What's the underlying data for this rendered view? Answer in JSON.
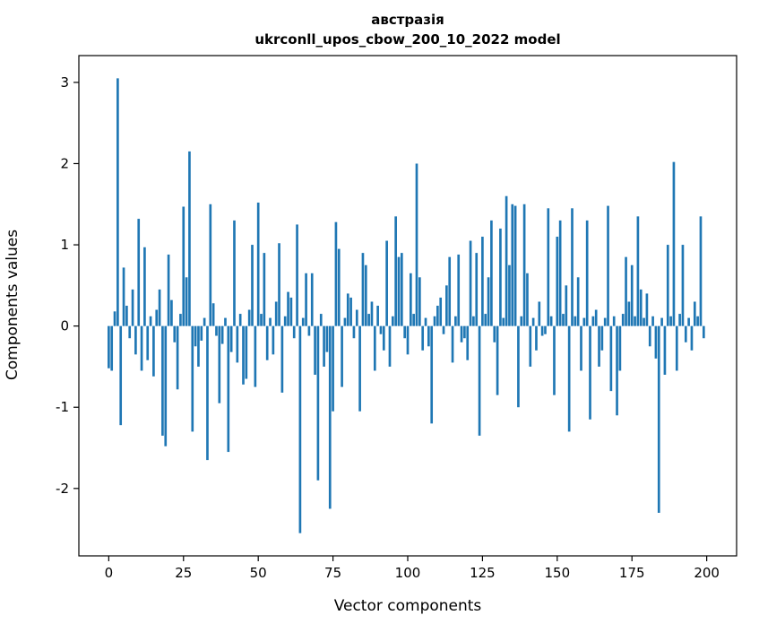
{
  "figure": {
    "title": "австразія",
    "subtitle": "ukrconll_upos_cbow_200_10_2022 model",
    "xlabel": "Vector components",
    "ylabel": "Components values"
  },
  "chart_data": {
    "type": "bar",
    "title": "австразія",
    "subtitle": "ukrconll_upos_cbow_200_10_2022 model",
    "xlabel": "Vector components",
    "ylabel": "Components values",
    "bar_color": "#1f77b4",
    "grid": false,
    "xlim": [
      -10,
      210
    ],
    "ylim": [
      -2.83,
      3.33
    ],
    "xticks": [
      0,
      25,
      50,
      75,
      100,
      125,
      150,
      175,
      200
    ],
    "yticks": [
      -2,
      -1,
      0,
      1,
      2,
      3
    ],
    "x_start": 0,
    "values": [
      -0.52,
      -0.55,
      0.18,
      3.05,
      -1.22,
      0.72,
      0.25,
      -0.15,
      0.45,
      -0.35,
      1.32,
      -0.55,
      0.97,
      -0.42,
      0.12,
      -0.62,
      0.2,
      0.45,
      -1.35,
      -1.48,
      0.88,
      0.32,
      -0.2,
      -0.78,
      0.15,
      1.47,
      0.6,
      2.15,
      -1.3,
      -0.25,
      -0.5,
      -0.18,
      0.1,
      -1.65,
      1.5,
      0.28,
      -0.12,
      -0.95,
      -0.22,
      0.1,
      -1.55,
      -0.32,
      1.3,
      -0.45,
      0.15,
      -0.72,
      -0.65,
      0.2,
      1.0,
      -0.75,
      1.52,
      0.15,
      0.9,
      -0.42,
      0.1,
      -0.35,
      0.3,
      1.02,
      -0.82,
      0.12,
      0.42,
      0.35,
      -0.15,
      1.25,
      -2.55,
      0.1,
      0.65,
      -0.12,
      0.65,
      -0.6,
      -1.9,
      0.15,
      -0.5,
      -0.32,
      -2.25,
      -1.05,
      1.28,
      0.95,
      -0.75,
      0.1,
      0.4,
      0.35,
      -0.15,
      0.2,
      -1.05,
      0.9,
      0.75,
      0.15,
      0.3,
      -0.55,
      0.25,
      -0.1,
      -0.3,
      1.05,
      -0.5,
      0.12,
      1.35,
      0.85,
      0.9,
      -0.15,
      -0.35,
      0.65,
      0.15,
      2.0,
      0.6,
      -0.3,
      0.1,
      -0.25,
      -1.2,
      0.12,
      0.25,
      0.35,
      -0.1,
      0.5,
      0.85,
      -0.45,
      0.12,
      0.88,
      -0.2,
      -0.15,
      -0.42,
      1.05,
      0.12,
      0.9,
      -1.35,
      1.1,
      0.15,
      0.6,
      1.3,
      -0.2,
      -0.85,
      1.2,
      0.1,
      1.6,
      0.75,
      1.5,
      1.48,
      -1.0,
      0.12,
      1.5,
      0.65,
      -0.5,
      0.1,
      -0.3,
      0.3,
      -0.12,
      -0.1,
      1.45,
      0.12,
      -0.85,
      1.1,
      1.3,
      0.15,
      0.5,
      -1.3,
      1.45,
      0.12,
      0.6,
      -0.55,
      0.1,
      1.3,
      -1.15,
      0.12,
      0.2,
      -0.5,
      -0.3,
      0.1,
      1.48,
      -0.8,
      0.12,
      -1.1,
      -0.55,
      0.15,
      0.85,
      0.3,
      0.75,
      0.12,
      1.35,
      0.45,
      0.1,
      0.4,
      -0.25,
      0.12,
      -0.4,
      -2.3,
      0.1,
      -0.6,
      1.0,
      0.12,
      2.02,
      -0.55,
      0.15,
      1.0,
      -0.2,
      0.1,
      -0.3,
      0.3,
      0.12,
      1.35,
      -0.15
    ]
  }
}
